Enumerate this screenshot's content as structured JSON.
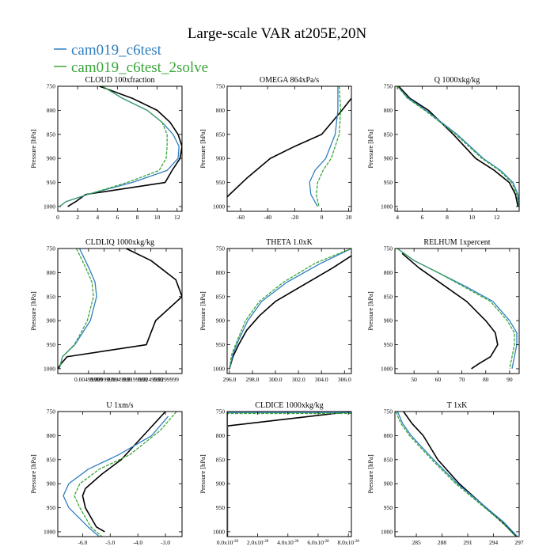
{
  "title": "Large-scale VAR at205E,20N",
  "legend": [
    {
      "name": "cam019_c6test",
      "color": "#2f7fbf"
    },
    {
      "name": "cam019_c6test_2solve",
      "color": "#3aa63a"
    }
  ],
  "ylabel": "Pressure [hPa]",
  "colors": {
    "obs": "#000000",
    "s1": "#2f7fbf",
    "s2": "#3aa63a"
  },
  "chart_data": [
    {
      "type": "line",
      "title": "CLOUD  100xfraction",
      "xlim": [
        0,
        12.5
      ],
      "ylim": [
        750,
        1010
      ],
      "xticks": [
        {
          "v": 0,
          "label": "0"
        },
        {
          "v": 2,
          "label": "2"
        },
        {
          "v": 4,
          "label": "4"
        },
        {
          "v": 6,
          "label": "6"
        },
        {
          "v": 8,
          "label": "8"
        },
        {
          "v": 10,
          "label": "10"
        },
        {
          "v": 12,
          "label": "12"
        }
      ],
      "yticks": [
        750,
        800,
        850,
        900,
        950,
        1000
      ],
      "series": [
        {
          "name": "obs",
          "x": [
            4.2,
            7.5,
            10,
            11.3,
            12.1,
            12.5,
            12.3,
            11.5,
            10.8,
            2.8,
            1.8,
            1.0
          ],
          "y": [
            750,
            775,
            800,
            825,
            850,
            875,
            900,
            925,
            950,
            975,
            990,
            1000
          ]
        },
        {
          "name": "cam019_c6test",
          "x": [
            4.5,
            6.5,
            9,
            10.5,
            11.6,
            12.2,
            12.1,
            11.0,
            7.5,
            3.0,
            0.8,
            0.2
          ],
          "y": [
            750,
            775,
            800,
            825,
            850,
            875,
            900,
            925,
            950,
            975,
            990,
            1000
          ]
        },
        {
          "name": "cam019_c6test_2solve",
          "x": [
            4.5,
            6.5,
            9,
            10.5,
            11.0,
            11.0,
            10.9,
            10.2,
            7.0,
            3.0,
            0.8,
            0.2
          ],
          "y": [
            750,
            775,
            800,
            825,
            850,
            875,
            900,
            925,
            950,
            975,
            990,
            1000
          ]
        }
      ]
    },
    {
      "type": "line",
      "title": "OMEGA  864xPa/s",
      "xlim": [
        -70,
        22
      ],
      "ylim": [
        750,
        1010
      ],
      "xticks": [
        {
          "v": -60,
          "label": "-60"
        },
        {
          "v": -40,
          "label": "-40"
        },
        {
          "v": -20,
          "label": "-20"
        },
        {
          "v": 0,
          "label": "0"
        },
        {
          "v": 20,
          "label": "20"
        }
      ],
      "yticks": [
        750,
        800,
        850,
        900,
        950,
        1000
      ],
      "series": [
        {
          "name": "obs",
          "x": [
            22,
            15,
            0,
            -20,
            -38,
            -55,
            -70
          ],
          "y": [
            775,
            800,
            850,
            875,
            900,
            940,
            980
          ]
        },
        {
          "name": "cam019_c6test",
          "x": [
            12,
            12,
            10,
            3,
            -5,
            -9,
            -8,
            -3
          ],
          "y": [
            750,
            800,
            850,
            900,
            925,
            950,
            975,
            1000
          ]
        },
        {
          "name": "cam019_c6test_2solve",
          "x": [
            13,
            14,
            13,
            7,
            1,
            -3,
            -4,
            -2
          ],
          "y": [
            750,
            800,
            850,
            900,
            925,
            950,
            975,
            1000
          ]
        }
      ]
    },
    {
      "type": "line",
      "title": "Q  1000xkg/kg",
      "xlim": [
        3.8,
        13.8
      ],
      "ylim": [
        750,
        1010
      ],
      "xticks": [
        {
          "v": 4,
          "label": "4"
        },
        {
          "v": 6,
          "label": "6"
        },
        {
          "v": 8,
          "label": "8"
        },
        {
          "v": 10,
          "label": "10"
        },
        {
          "v": 12,
          "label": "12"
        }
      ],
      "yticks": [
        750,
        800,
        850,
        900,
        950,
        1000
      ],
      "series": [
        {
          "name": "obs",
          "x": [
            4.1,
            5.0,
            6.5,
            8.5,
            10.3,
            11.8,
            13.0,
            13.5,
            13.7
          ],
          "y": [
            750,
            775,
            800,
            850,
            900,
            925,
            950,
            975,
            1000
          ]
        },
        {
          "name": "cam019_c6test",
          "x": [
            4.0,
            4.9,
            6.3,
            8.8,
            10.9,
            12.3,
            13.3,
            13.7,
            13.8
          ],
          "y": [
            750,
            775,
            800,
            850,
            900,
            925,
            950,
            975,
            1000
          ]
        },
        {
          "name": "cam019_c6test_2solve",
          "x": [
            4.0,
            4.8,
            6.2,
            8.7,
            10.8,
            12.2,
            13.2,
            13.6,
            13.8
          ],
          "y": [
            750,
            775,
            800,
            850,
            900,
            925,
            950,
            975,
            1000
          ]
        }
      ]
    },
    {
      "type": "line",
      "title": "CLDLIQ  1000xkg/kg",
      "xlim": [
        -0.005,
        0.035
      ],
      "ylim": [
        750,
        1010
      ],
      "xticks": [
        {
          "v": 0.0049,
          "label": "0.00499999"
        },
        {
          "v": 0.0099,
          "label": "0.00999999"
        },
        {
          "v": 0.0149,
          "label": "0.0149999"
        },
        {
          "v": 0.0199,
          "label": "0.0199999"
        },
        {
          "v": 0.0249,
          "label": "0.0249999"
        },
        {
          "v": 0.0299,
          "label": "0.0299999"
        }
      ],
      "yticks": [
        750,
        800,
        850,
        900,
        950,
        1000
      ],
      "series": [
        {
          "name": "obs",
          "x": [
            0.017,
            0.025,
            0.033,
            0.035,
            0.0265,
            0.025,
            0.0235,
            -0.002,
            -0.004,
            -0.005
          ],
          "y": [
            750,
            775,
            815,
            850,
            900,
            925,
            950,
            975,
            990,
            1000
          ]
        },
        {
          "name": "cam019_c6test",
          "x": [
            0.002,
            0.005,
            0.007,
            0.0075,
            0.0055,
            0.003,
            0.0005,
            -0.0035,
            -0.0045
          ],
          "y": [
            750,
            790,
            820,
            850,
            900,
            925,
            950,
            975,
            1000
          ]
        },
        {
          "name": "cam019_c6test_2solve",
          "x": [
            0.001,
            0.004,
            0.006,
            0.0065,
            0.0045,
            0.0025,
            0.0003,
            -0.0035,
            -0.0045
          ],
          "y": [
            750,
            790,
            820,
            850,
            900,
            925,
            950,
            975,
            1000
          ]
        }
      ]
    },
    {
      "type": "line",
      "title": "THETA  1.0xK",
      "xlim": [
        295.8,
        306.6
      ],
      "ylim": [
        750,
        1010
      ],
      "xticks": [
        {
          "v": 296,
          "label": "296.0"
        },
        {
          "v": 298,
          "label": "298.0"
        },
        {
          "v": 300,
          "label": "300.0"
        },
        {
          "v": 302,
          "label": "302.0"
        },
        {
          "v": 304,
          "label": "304.0"
        },
        {
          "v": 306,
          "label": "306.0"
        }
      ],
      "yticks": [
        750,
        800,
        850,
        900,
        950,
        1000
      ],
      "series": [
        {
          "name": "obs",
          "x": [
            306.6,
            305.0,
            302.5,
            300.0,
            298.6,
            297.5,
            296.8,
            296.3,
            296.0
          ],
          "y": [
            765,
            790,
            825,
            860,
            890,
            920,
            950,
            975,
            1000
          ]
        },
        {
          "name": "cam019_c6test",
          "x": [
            306.6,
            304.0,
            301.0,
            298.8,
            297.6,
            296.8,
            296.3,
            296.0
          ],
          "y": [
            750,
            780,
            820,
            860,
            900,
            940,
            970,
            1000
          ]
        },
        {
          "name": "cam019_c6test_2solve",
          "x": [
            306.6,
            303.5,
            300.7,
            298.6,
            297.4,
            296.7,
            296.2,
            296.0
          ],
          "y": [
            750,
            780,
            820,
            860,
            900,
            940,
            970,
            1000
          ]
        }
      ]
    },
    {
      "type": "line",
      "title": "RELHUM  1xpercent",
      "xlim": [
        42,
        94
      ],
      "ylim": [
        750,
        1010
      ],
      "xticks": [
        {
          "v": 50,
          "label": "50"
        },
        {
          "v": 60,
          "label": "60"
        },
        {
          "v": 70,
          "label": "70"
        },
        {
          "v": 80,
          "label": "80"
        },
        {
          "v": 90,
          "label": "90"
        }
      ],
      "yticks": [
        750,
        800,
        850,
        900,
        950,
        1000
      ],
      "series": [
        {
          "name": "obs",
          "x": [
            45,
            52,
            62,
            72,
            80,
            84,
            85,
            82,
            77,
            74
          ],
          "y": [
            760,
            790,
            825,
            860,
            900,
            925,
            950,
            975,
            990,
            1000
          ]
        },
        {
          "name": "cam019_c6test",
          "x": [
            43,
            50,
            60,
            72,
            83,
            90,
            93,
            93,
            92,
            91
          ],
          "y": [
            750,
            775,
            800,
            830,
            860,
            900,
            925,
            950,
            975,
            1000
          ]
        },
        {
          "name": "cam019_c6test_2solve",
          "x": [
            43,
            50,
            60,
            71,
            82,
            89,
            92,
            92,
            91,
            90
          ],
          "y": [
            750,
            775,
            800,
            830,
            860,
            900,
            925,
            950,
            975,
            1000
          ]
        }
      ]
    },
    {
      "type": "line",
      "title": "U  1xm/s",
      "xlim": [
        -6.9,
        -2.4
      ],
      "ylim": [
        750,
        1010
      ],
      "xticks": [
        {
          "v": -6,
          "label": "-6.0"
        },
        {
          "v": -5,
          "label": "-5.0"
        },
        {
          "v": -4,
          "label": "-4.0"
        },
        {
          "v": -3,
          "label": "-3.0"
        }
      ],
      "yticks": [
        750,
        800,
        850,
        900,
        950,
        1000
      ],
      "series": [
        {
          "name": "obs",
          "x": [
            -3.0,
            -3.8,
            -4.6,
            -5.3,
            -5.9,
            -6.0,
            -5.9,
            -5.5,
            -5.2
          ],
          "y": [
            750,
            800,
            850,
            880,
            910,
            925,
            950,
            990,
            1000
          ]
        },
        {
          "name": "cam019_c6test",
          "x": [
            -2.9,
            -3.5,
            -4.7,
            -5.8,
            -6.5,
            -6.7,
            -6.5,
            -5.8,
            -5.4
          ],
          "y": [
            760,
            800,
            840,
            870,
            900,
            925,
            950,
            990,
            1010
          ]
        },
        {
          "name": "cam019_c6test_2solve",
          "x": [
            -2.6,
            -3.2,
            -4.3,
            -5.4,
            -6.1,
            -6.3,
            -6.1,
            -5.7,
            -5.3
          ],
          "y": [
            750,
            790,
            840,
            870,
            900,
            925,
            950,
            990,
            1010
          ]
        }
      ]
    },
    {
      "type": "line",
      "title": "CLDICE  1000xkg/kg",
      "xlim": [
        -2e-30,
        8.2e-28
      ],
      "ylim": [
        750,
        1010
      ],
      "xticks": [
        {
          "v": 0,
          "base": "0.0x10",
          "exp": "-28"
        },
        {
          "v": 2e-28,
          "base": "2.0x10",
          "exp": "-28"
        },
        {
          "v": 4e-28,
          "base": "4.0x10",
          "exp": "-28"
        },
        {
          "v": 6e-28,
          "base": "6.0x10",
          "exp": "-28"
        },
        {
          "v": 8e-28,
          "base": "8.0x10",
          "exp": "-28"
        }
      ],
      "yticks": [
        750,
        800,
        850,
        900,
        950,
        1000
      ],
      "series": [
        {
          "name": "obs",
          "x": [
            8.2e-28,
            0,
            0,
            0
          ],
          "y": [
            750,
            780,
            900,
            1010
          ]
        },
        {
          "name": "cam019_c6test",
          "x": [
            8.2e-28,
            0,
            0,
            0
          ],
          "y": [
            752,
            752,
            900,
            1010
          ]
        },
        {
          "name": "cam019_c6test_2solve",
          "x": [
            8.2e-28,
            0,
            0,
            0
          ],
          "y": [
            754,
            754,
            900,
            1010
          ]
        }
      ]
    },
    {
      "type": "line",
      "title": "T  1xK",
      "xlim": [
        282.5,
        297
      ],
      "ylim": [
        750,
        1010
      ],
      "xticks": [
        {
          "v": 285,
          "label": "285"
        },
        {
          "v": 288,
          "label": "288"
        },
        {
          "v": 291,
          "label": "291"
        },
        {
          "v": 294,
          "label": "294"
        },
        {
          "v": 297,
          "label": "297"
        }
      ],
      "yticks": [
        750,
        800,
        850,
        900,
        950,
        1000
      ],
      "series": [
        {
          "name": "obs",
          "x": [
            283.5,
            284.5,
            285.8,
            287.5,
            290.0,
            292.5,
            295.0,
            296.7
          ],
          "y": [
            750,
            775,
            800,
            850,
            900,
            940,
            980,
            1010
          ]
        },
        {
          "name": "cam019_c6test",
          "x": [
            282.8,
            283.4,
            284.4,
            287.0,
            289.8,
            292.5,
            295.2,
            296.8
          ],
          "y": [
            750,
            775,
            800,
            850,
            900,
            940,
            980,
            1010
          ]
        },
        {
          "name": "cam019_c6test_2solve",
          "x": [
            282.6,
            283.2,
            284.2,
            286.8,
            289.6,
            292.3,
            295.0,
            296.6
          ],
          "y": [
            750,
            775,
            800,
            850,
            900,
            940,
            980,
            1010
          ]
        }
      ]
    }
  ]
}
